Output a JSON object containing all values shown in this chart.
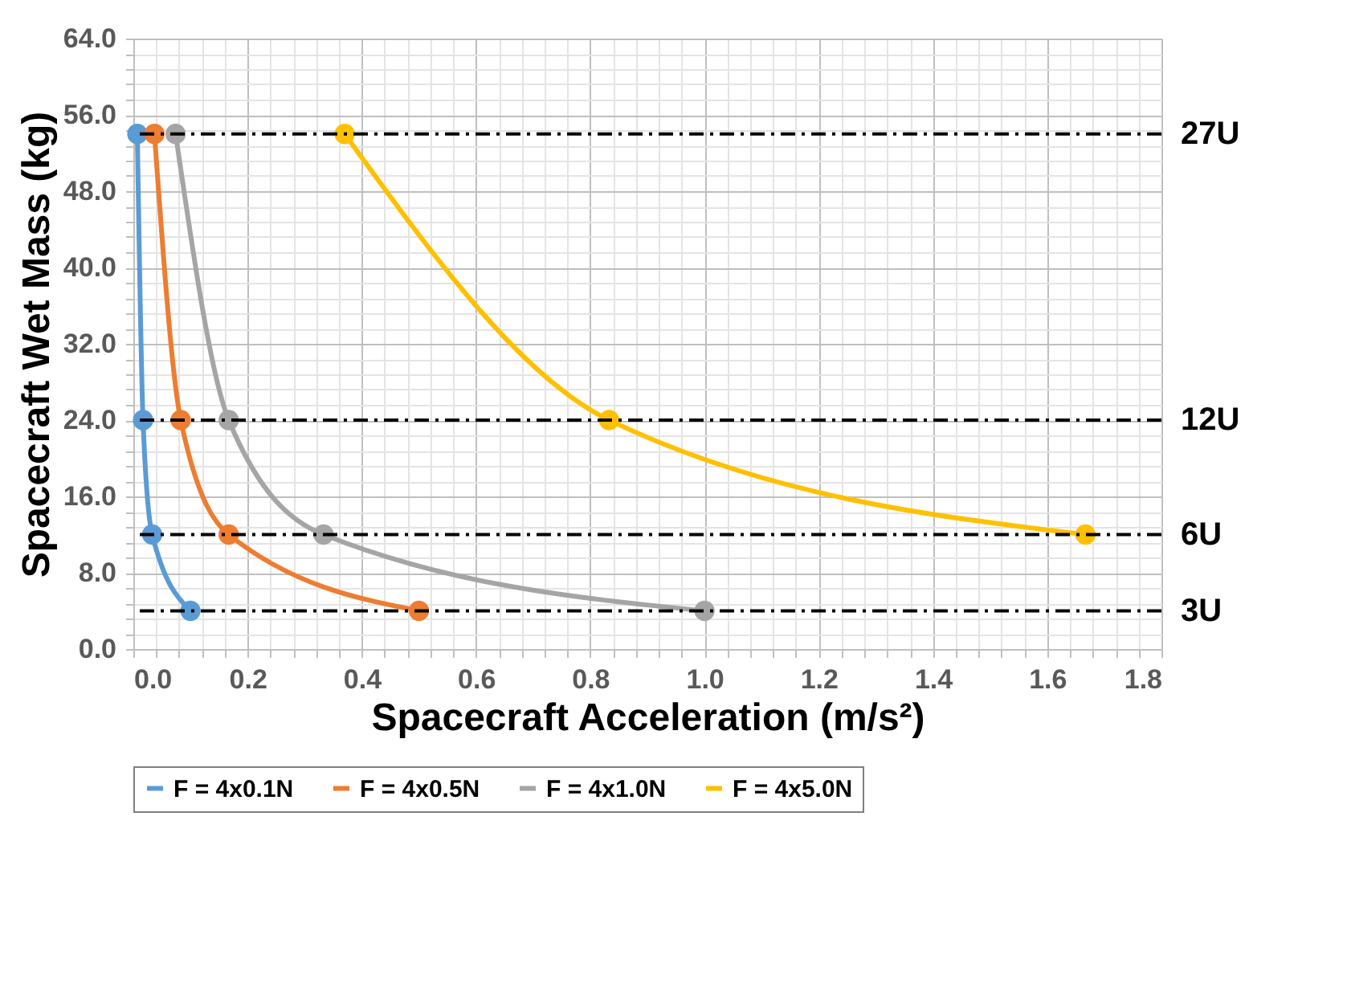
{
  "chart_data": {
    "type": "line",
    "xlabel": "Spacecraft Acceleration (m/s²)",
    "ylabel": "Spacecraft Wet Mass (kg)",
    "series": [
      {
        "name": "F = 4x0.1N",
        "color": "#5b9bd5",
        "x": [
          0.007,
          0.017,
          0.033,
          0.1
        ],
        "values": [
          54,
          24,
          12,
          4
        ]
      },
      {
        "name": "F = 4x0.5N",
        "color": "#ed7d31",
        "x": [
          0.037,
          0.083,
          0.167,
          0.5
        ],
        "values": [
          54,
          24,
          12,
          4
        ]
      },
      {
        "name": "F = 4x1.0N",
        "color": "#a5a5a5",
        "x": [
          0.074,
          0.167,
          0.333,
          1.0
        ],
        "values": [
          54,
          24,
          12,
          4
        ]
      },
      {
        "name": "F = 4x5.0N",
        "color": "#ffc000",
        "x": [
          0.37,
          0.833,
          1.667
        ],
        "values": [
          54,
          24,
          12
        ]
      }
    ],
    "xlim": [
      0,
      1.8
    ],
    "ylim": [
      0,
      64
    ],
    "xticks": [
      {
        "value": 0,
        "label": "0.0"
      },
      {
        "value": 0.04,
        "label": null
      },
      {
        "value": 0.08,
        "label": null
      },
      {
        "value": 0.12,
        "label": null
      },
      {
        "value": 0.16,
        "label": null
      },
      {
        "value": 0.2,
        "label": "0.2"
      },
      {
        "value": 0.24,
        "label": null
      },
      {
        "value": 0.28,
        "label": null
      },
      {
        "value": 0.32,
        "label": null
      },
      {
        "value": 0.36,
        "label": null
      },
      {
        "value": 0.4,
        "label": "0.4"
      },
      {
        "value": 0.44,
        "label": null
      },
      {
        "value": 0.48,
        "label": null
      },
      {
        "value": 0.52,
        "label": null
      },
      {
        "value": 0.56,
        "label": null
      },
      {
        "value": 0.6,
        "label": "0.6"
      },
      {
        "value": 0.64,
        "label": null
      },
      {
        "value": 0.68,
        "label": null
      },
      {
        "value": 0.72,
        "label": null
      },
      {
        "value": 0.76,
        "label": null
      },
      {
        "value": 0.8,
        "label": "0.8"
      },
      {
        "value": 0.84,
        "label": null
      },
      {
        "value": 0.88,
        "label": null
      },
      {
        "value": 0.92,
        "label": null
      },
      {
        "value": 0.96,
        "label": null
      },
      {
        "value": 1.0,
        "label": "1.0"
      },
      {
        "value": 1.04,
        "label": null
      },
      {
        "value": 1.08,
        "label": null
      },
      {
        "value": 1.12,
        "label": null
      },
      {
        "value": 1.16,
        "label": null
      },
      {
        "value": 1.2,
        "label": "1.2"
      },
      {
        "value": 1.24,
        "label": null
      },
      {
        "value": 1.28,
        "label": null
      },
      {
        "value": 1.32,
        "label": null
      },
      {
        "value": 1.36,
        "label": null
      },
      {
        "value": 1.4,
        "label": "1.4"
      },
      {
        "value": 1.44,
        "label": null
      },
      {
        "value": 1.48,
        "label": null
      },
      {
        "value": 1.52,
        "label": null
      },
      {
        "value": 1.56,
        "label": null
      },
      {
        "value": 1.6,
        "label": "1.6"
      },
      {
        "value": 1.64,
        "label": null
      },
      {
        "value": 1.68,
        "label": null
      },
      {
        "value": 1.72,
        "label": null
      },
      {
        "value": 1.76,
        "label": null
      },
      {
        "value": 1.8,
        "label": "1.8"
      }
    ],
    "yticks": [
      {
        "value": 0,
        "label": "0.0"
      },
      {
        "value": 1.6,
        "label": null
      },
      {
        "value": 3.2,
        "label": null
      },
      {
        "value": 4.8,
        "label": null
      },
      {
        "value": 6.4,
        "label": null
      },
      {
        "value": 8,
        "label": "8.0"
      },
      {
        "value": 9.6,
        "label": null
      },
      {
        "value": 11.2,
        "label": null
      },
      {
        "value": 12.8,
        "label": null
      },
      {
        "value": 14.4,
        "label": null
      },
      {
        "value": 16,
        "label": "16.0"
      },
      {
        "value": 17.6,
        "label": null
      },
      {
        "value": 19.2,
        "label": null
      },
      {
        "value": 20.8,
        "label": null
      },
      {
        "value": 22.4,
        "label": null
      },
      {
        "value": 24,
        "label": "24.0"
      },
      {
        "value": 25.6,
        "label": null
      },
      {
        "value": 27.2,
        "label": null
      },
      {
        "value": 28.8,
        "label": null
      },
      {
        "value": 30.4,
        "label": null
      },
      {
        "value": 32,
        "label": "32.0"
      },
      {
        "value": 33.6,
        "label": null
      },
      {
        "value": 35.2,
        "label": null
      },
      {
        "value": 36.8,
        "label": null
      },
      {
        "value": 38.4,
        "label": null
      },
      {
        "value": 40,
        "label": "40.0"
      },
      {
        "value": 41.6,
        "label": null
      },
      {
        "value": 43.2,
        "label": null
      },
      {
        "value": 44.8,
        "label": null
      },
      {
        "value": 46.4,
        "label": null
      },
      {
        "value": 48,
        "label": "48.0"
      },
      {
        "value": 49.6,
        "label": null
      },
      {
        "value": 51.2,
        "label": null
      },
      {
        "value": 52.8,
        "label": null
      },
      {
        "value": 54.4,
        "label": null
      },
      {
        "value": 56,
        "label": "56.0"
      },
      {
        "value": 57.6,
        "label": null
      },
      {
        "value": 59.2,
        "label": null
      },
      {
        "value": 60.8,
        "label": null
      },
      {
        "value": 62.4,
        "label": null
      },
      {
        "value": 64,
        "label": "64.0"
      }
    ],
    "ref_lines": [
      {
        "axis": "y",
        "value": 54,
        "label": "27U",
        "color": "#000000",
        "line_style": "dashdot"
      },
      {
        "axis": "y",
        "value": 24,
        "label": "12U",
        "color": "#000000",
        "line_style": "dashdot"
      },
      {
        "axis": "y",
        "value": 12,
        "label": "6U",
        "color": "#000000",
        "line_style": "dashdot"
      },
      {
        "axis": "y",
        "value": 4,
        "label": "3U",
        "color": "#000000",
        "line_style": "dashdot"
      }
    ],
    "grid": true,
    "legend": "bottom",
    "marker": "circle",
    "line_style": "solid"
  }
}
